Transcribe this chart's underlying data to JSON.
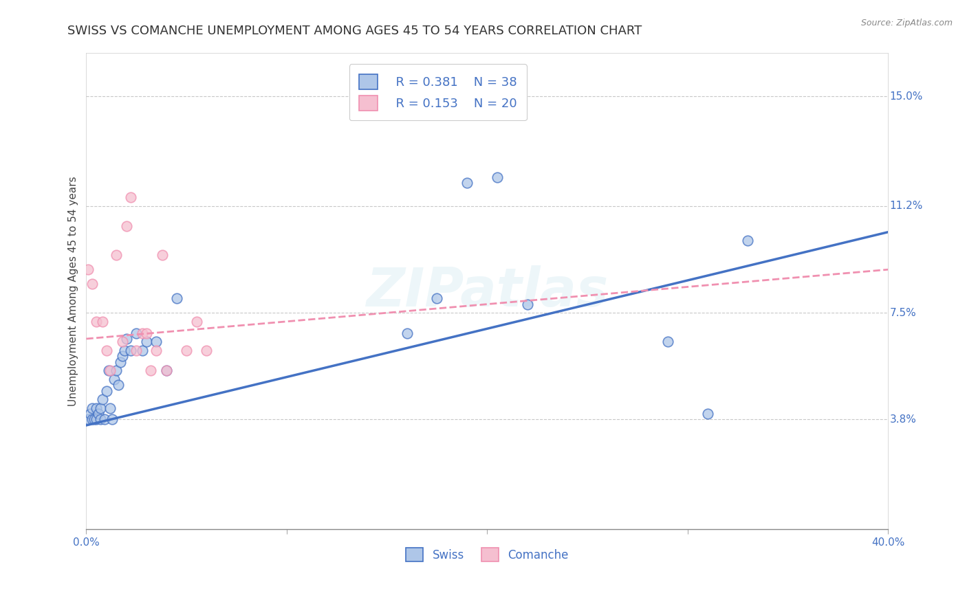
{
  "title": "SWISS VS COMANCHE UNEMPLOYMENT AMONG AGES 45 TO 54 YEARS CORRELATION CHART",
  "source": "Source: ZipAtlas.com",
  "ylabel": "Unemployment Among Ages 45 to 54 years",
  "xlim": [
    0.0,
    0.4
  ],
  "ylim": [
    0.0,
    0.165
  ],
  "xticks": [
    0.0,
    0.1,
    0.2,
    0.3,
    0.4
  ],
  "xticklabels": [
    "0.0%",
    "",
    "",
    "",
    "40.0%"
  ],
  "yticks": [
    0.038,
    0.075,
    0.112,
    0.15
  ],
  "yticklabels": [
    "3.8%",
    "7.5%",
    "11.2%",
    "15.0%"
  ],
  "legend_r_swiss": "R = 0.381",
  "legend_n_swiss": "N = 38",
  "legend_r_comanche": "R = 0.153",
  "legend_n_comanche": "N = 20",
  "swiss_color": "#aec6e8",
  "comanche_color": "#f5bfd0",
  "swiss_line_color": "#4472c4",
  "comanche_line_color": "#f090b0",
  "label_color": "#4472c4",
  "swiss_x": [
    0.001,
    0.002,
    0.003,
    0.003,
    0.004,
    0.005,
    0.005,
    0.006,
    0.007,
    0.007,
    0.008,
    0.009,
    0.01,
    0.011,
    0.012,
    0.013,
    0.014,
    0.015,
    0.016,
    0.017,
    0.018,
    0.019,
    0.02,
    0.022,
    0.025,
    0.028,
    0.03,
    0.035,
    0.04,
    0.045,
    0.16,
    0.175,
    0.19,
    0.205,
    0.22,
    0.29,
    0.31,
    0.33
  ],
  "swiss_y": [
    0.038,
    0.04,
    0.038,
    0.042,
    0.038,
    0.042,
    0.038,
    0.04,
    0.038,
    0.042,
    0.045,
    0.038,
    0.048,
    0.055,
    0.042,
    0.038,
    0.052,
    0.055,
    0.05,
    0.058,
    0.06,
    0.062,
    0.066,
    0.062,
    0.068,
    0.062,
    0.065,
    0.065,
    0.055,
    0.08,
    0.068,
    0.08,
    0.12,
    0.122,
    0.078,
    0.065,
    0.04,
    0.1
  ],
  "comanche_x": [
    0.001,
    0.003,
    0.005,
    0.008,
    0.01,
    0.012,
    0.015,
    0.018,
    0.02,
    0.022,
    0.025,
    0.028,
    0.03,
    0.032,
    0.035,
    0.038,
    0.04,
    0.05,
    0.055,
    0.06
  ],
  "comanche_y": [
    0.09,
    0.085,
    0.072,
    0.072,
    0.062,
    0.055,
    0.095,
    0.065,
    0.105,
    0.115,
    0.062,
    0.068,
    0.068,
    0.055,
    0.062,
    0.095,
    0.055,
    0.062,
    0.072,
    0.062
  ],
  "swiss_line_x0": 0.0,
  "swiss_line_y0": 0.036,
  "swiss_line_x1": 0.4,
  "swiss_line_y1": 0.103,
  "comanche_line_x0": 0.0,
  "comanche_line_y0": 0.066,
  "comanche_line_x1": 0.4,
  "comanche_line_y1": 0.09,
  "watermark": "ZIPatlas",
  "marker_size": 110,
  "alpha": 0.75,
  "background_color": "#ffffff",
  "grid_color": "#c8c8c8",
  "title_fontsize": 13,
  "axis_label_fontsize": 11,
  "tick_fontsize": 11
}
